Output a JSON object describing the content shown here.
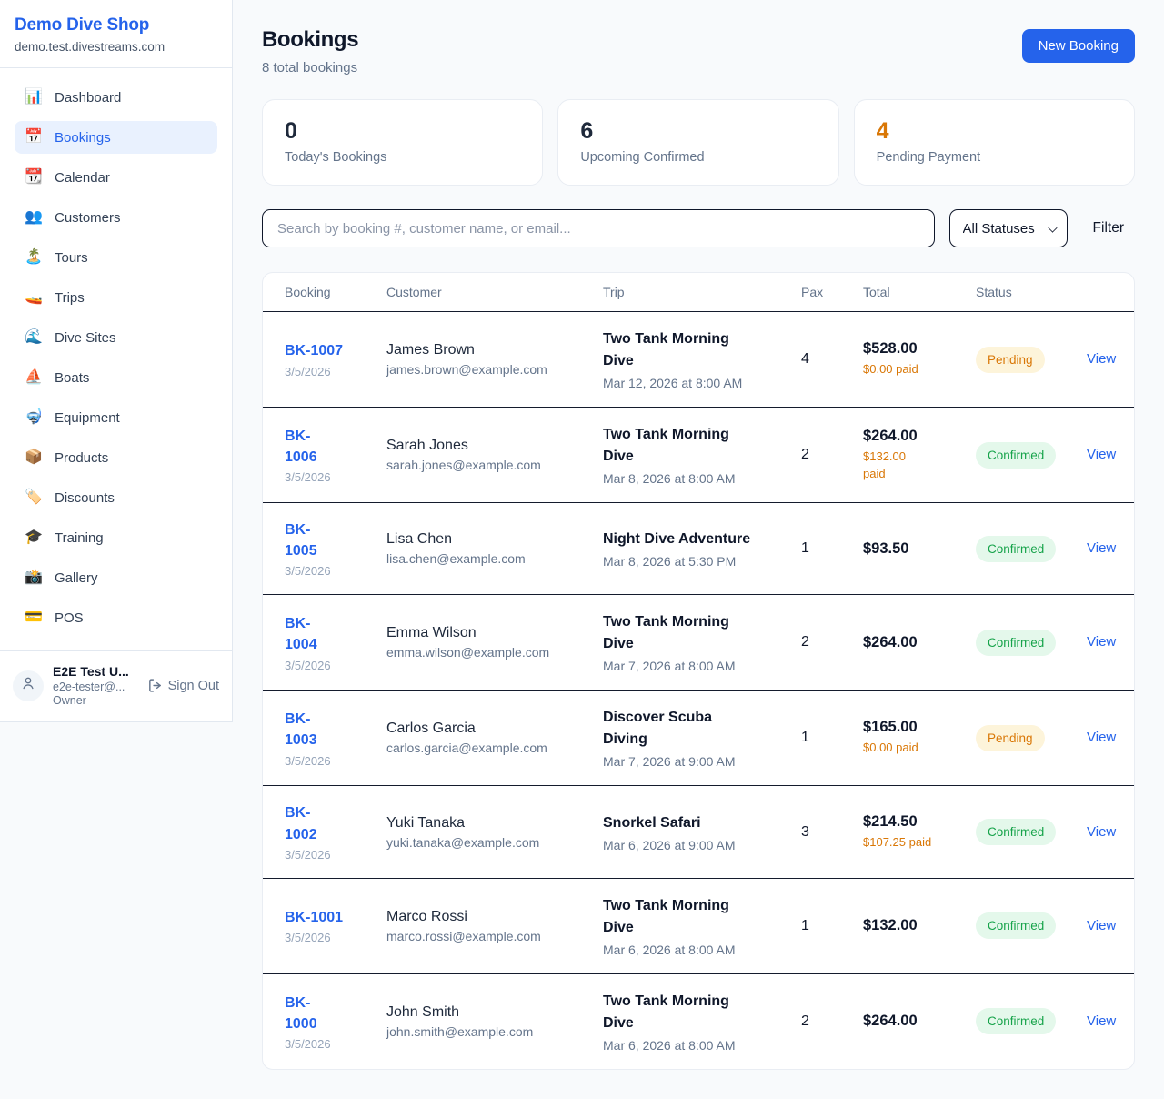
{
  "sidebar": {
    "brand": {
      "name": "Demo Dive Shop",
      "domain": "demo.test.divestreams.com"
    },
    "items": [
      {
        "icon": "📊",
        "icon_name": "bar-chart-icon",
        "label": "Dashboard",
        "active": false
      },
      {
        "icon": "📅",
        "icon_name": "calendar-icon",
        "label": "Bookings",
        "active": true
      },
      {
        "icon": "📆",
        "icon_name": "tear-off-calendar-icon",
        "label": "Calendar",
        "active": false
      },
      {
        "icon": "👥",
        "icon_name": "people-icon",
        "label": "Customers",
        "active": false
      },
      {
        "icon": "🏝️",
        "icon_name": "island-icon",
        "label": "Tours",
        "active": false
      },
      {
        "icon": "🚤",
        "icon_name": "speedboat-icon",
        "label": "Trips",
        "active": false
      },
      {
        "icon": "🌊",
        "icon_name": "wave-icon",
        "label": "Dive Sites",
        "active": false
      },
      {
        "icon": "⛵",
        "icon_name": "sailboat-icon",
        "label": "Boats",
        "active": false
      },
      {
        "icon": "🤿",
        "icon_name": "diving-mask-icon",
        "label": "Equipment",
        "active": false
      },
      {
        "icon": "📦",
        "icon_name": "package-icon",
        "label": "Products",
        "active": false
      },
      {
        "icon": "🏷️",
        "icon_name": "tag-icon",
        "label": "Discounts",
        "active": false
      },
      {
        "icon": "🎓",
        "icon_name": "graduation-cap-icon",
        "label": "Training",
        "active": false
      },
      {
        "icon": "📸",
        "icon_name": "camera-icon",
        "label": "Gallery",
        "active": false
      },
      {
        "icon": "💳",
        "icon_name": "credit-card-icon",
        "label": "POS",
        "active": false
      }
    ],
    "user": {
      "name": "E2E Test U...",
      "email": "e2e-tester@...",
      "role": "Owner",
      "sign_out_label": "Sign Out"
    }
  },
  "header": {
    "title": "Bookings",
    "subtitle": "8 total bookings",
    "new_booking_label": "New Booking"
  },
  "stats": [
    {
      "value": "0",
      "label": "Today's Bookings"
    },
    {
      "value": "6",
      "label": "Upcoming Confirmed"
    },
    {
      "value": "4",
      "label": "Pending Payment"
    }
  ],
  "filters": {
    "search_placeholder": "Search by booking #, customer name, or email...",
    "status_selected": "All Statuses",
    "filter_label": "Filter"
  },
  "table": {
    "columns": [
      "Booking",
      "Customer",
      "Trip",
      "Pax",
      "Total",
      "Status",
      ""
    ],
    "view_label": "View",
    "rows": [
      {
        "id": "BK-1007",
        "date": "3/5/2026",
        "customer": "James Brown",
        "email": "james.brown@example.com",
        "trip": "Two Tank Morning\nDive",
        "trip_time": "Mar 12, 2026 at 8:00 AM",
        "pax": "4",
        "total": "$528.00",
        "paid": "$0.00 paid",
        "status": "Pending",
        "view": "View"
      },
      {
        "id": "BK-\n1006",
        "date": "3/5/2026",
        "customer": "Sarah Jones",
        "email": "sarah.jones@example.com",
        "trip": "Two Tank Morning\nDive",
        "trip_time": "Mar 8, 2026 at 8:00 AM",
        "pax": "2",
        "total": "$264.00",
        "paid": "$132.00\npaid",
        "status": "Confirmed",
        "view": "View"
      },
      {
        "id": "BK-\n1005",
        "date": "3/5/2026",
        "customer": "Lisa Chen",
        "email": "lisa.chen@example.com",
        "trip": "Night Dive Adventure",
        "trip_time": "Mar 8, 2026 at 5:30 PM",
        "pax": "1",
        "total": "$93.50",
        "paid": null,
        "status": "Confirmed",
        "view": "View"
      },
      {
        "id": "BK-\n1004",
        "date": "3/5/2026",
        "customer": "Emma Wilson",
        "email": "emma.wilson@example.com",
        "trip": "Two Tank Morning\nDive",
        "trip_time": "Mar 7, 2026 at 8:00 AM",
        "pax": "2",
        "total": "$264.00",
        "paid": null,
        "status": "Confirmed",
        "view": "View"
      },
      {
        "id": "BK-\n1003",
        "date": "3/5/2026",
        "customer": "Carlos Garcia",
        "email": "carlos.garcia@example.com",
        "trip": "Discover Scuba\nDiving",
        "trip_time": "Mar 7, 2026 at 9:00 AM",
        "pax": "1",
        "total": "$165.00",
        "paid": "$0.00 paid",
        "status": "Pending",
        "view": "View"
      },
      {
        "id": "BK-\n1002",
        "date": "3/5/2026",
        "customer": "Yuki Tanaka",
        "email": "yuki.tanaka@example.com",
        "trip": "Snorkel Safari",
        "trip_time": "Mar 6, 2026 at 9:00 AM",
        "pax": "3",
        "total": "$214.50",
        "paid": "$107.25 paid",
        "status": "Confirmed",
        "view": "View"
      },
      {
        "id": "BK-1001",
        "date": "3/5/2026",
        "customer": "Marco Rossi",
        "email": "marco.rossi@example.com",
        "trip": "Two Tank Morning\nDive",
        "trip_time": "Mar 6, 2026 at 8:00 AM",
        "pax": "1",
        "total": "$132.00",
        "paid": null,
        "status": "Confirmed",
        "view": "View"
      },
      {
        "id": "BK-\n1000",
        "date": "3/5/2026",
        "customer": "John Smith",
        "email": "john.smith@example.com",
        "trip": "Two Tank Morning\nDive",
        "trip_time": "Mar 6, 2026 at 8:00 AM",
        "pax": "2",
        "total": "$264.00",
        "paid": null,
        "status": "Confirmed",
        "view": "View"
      }
    ]
  },
  "colors": {
    "accent_blue": "#2563eb",
    "pending_orange": "#d97706",
    "confirmed_green": "#16a34a",
    "page_background": "#f8fafc"
  }
}
